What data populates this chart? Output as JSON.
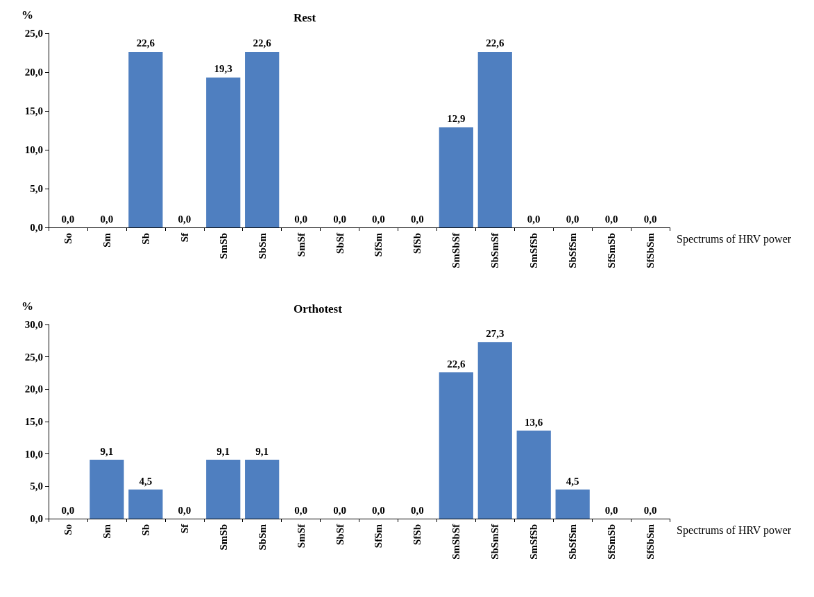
{
  "chart_data": [
    {
      "type": "bar",
      "title": "Rest",
      "ylabel": "%",
      "xlabel": "Spectrums of HRV power",
      "categories": [
        "So",
        "Sm",
        "Sb",
        "Sf",
        "SmSb",
        "SbSm",
        "SmSf",
        "SbSf",
        "SfSm",
        "SfSb",
        "SmSbSf",
        "SbSmSf",
        "SmSfSb",
        "SbSfSm",
        "SfSmSb",
        "SfSbSm"
      ],
      "series": [
        {
          "color": "#4f7fc0",
          "values": [
            0,
            0,
            22.6,
            0,
            19.3,
            22.6,
            0,
            0,
            0,
            0,
            12.9,
            22.6,
            0,
            0,
            0,
            0
          ],
          "value_labels": [
            "0,0",
            "0,0",
            "22,6",
            "0,0",
            "19,3",
            "22,6",
            "0,0",
            "0,0",
            "0,0",
            "0,0",
            "12,9",
            "22,6",
            "0,0",
            "0,0",
            "0,0",
            "0,0"
          ]
        }
      ],
      "ylim": [
        0,
        25
      ],
      "yticks": [
        {
          "value": 0,
          "label": "0,0"
        },
        {
          "value": 5,
          "label": "5,0"
        },
        {
          "value": 10,
          "label": "10,0"
        },
        {
          "value": 15,
          "label": "15,0"
        },
        {
          "value": 20,
          "label": "20,0"
        },
        {
          "value": 25,
          "label": "25,0"
        }
      ],
      "grid": false
    },
    {
      "type": "bar",
      "title": "Orthotest",
      "ylabel": "%",
      "xlabel": "Spectrums of HRV power",
      "categories": [
        "So",
        "Sm",
        "Sb",
        "Sf",
        "SmSb",
        "SbSm",
        "SmSf",
        "SbSf",
        "SfSm",
        "SfSb",
        "SmSbSf",
        "SbSmSf",
        "SmSfSb",
        "SbSfSm",
        "SfSmSb",
        "SfSbSm"
      ],
      "series": [
        {
          "color": "#4f7fc0",
          "values": [
            0,
            9.1,
            4.5,
            0,
            9.1,
            9.1,
            0,
            0,
            0,
            0,
            22.6,
            27.3,
            13.6,
            4.5,
            0,
            0
          ],
          "value_labels": [
            "0,0",
            "9,1",
            "4,5",
            "0,0",
            "9,1",
            "9,1",
            "0,0",
            "0,0",
            "0,0",
            "0,0",
            "22,6",
            "27,3",
            "13,6",
            "4,5",
            "0,0",
            "0,0"
          ]
        }
      ],
      "ylim": [
        0,
        30
      ],
      "yticks": [
        {
          "value": 0,
          "label": "0,0"
        },
        {
          "value": 5,
          "label": "5,0"
        },
        {
          "value": 10,
          "label": "10,0"
        },
        {
          "value": 15,
          "label": "15,0"
        },
        {
          "value": 20,
          "label": "20,0"
        },
        {
          "value": 25,
          "label": "25,0"
        },
        {
          "value": 30,
          "label": "30,0"
        }
      ],
      "grid": false
    }
  ]
}
